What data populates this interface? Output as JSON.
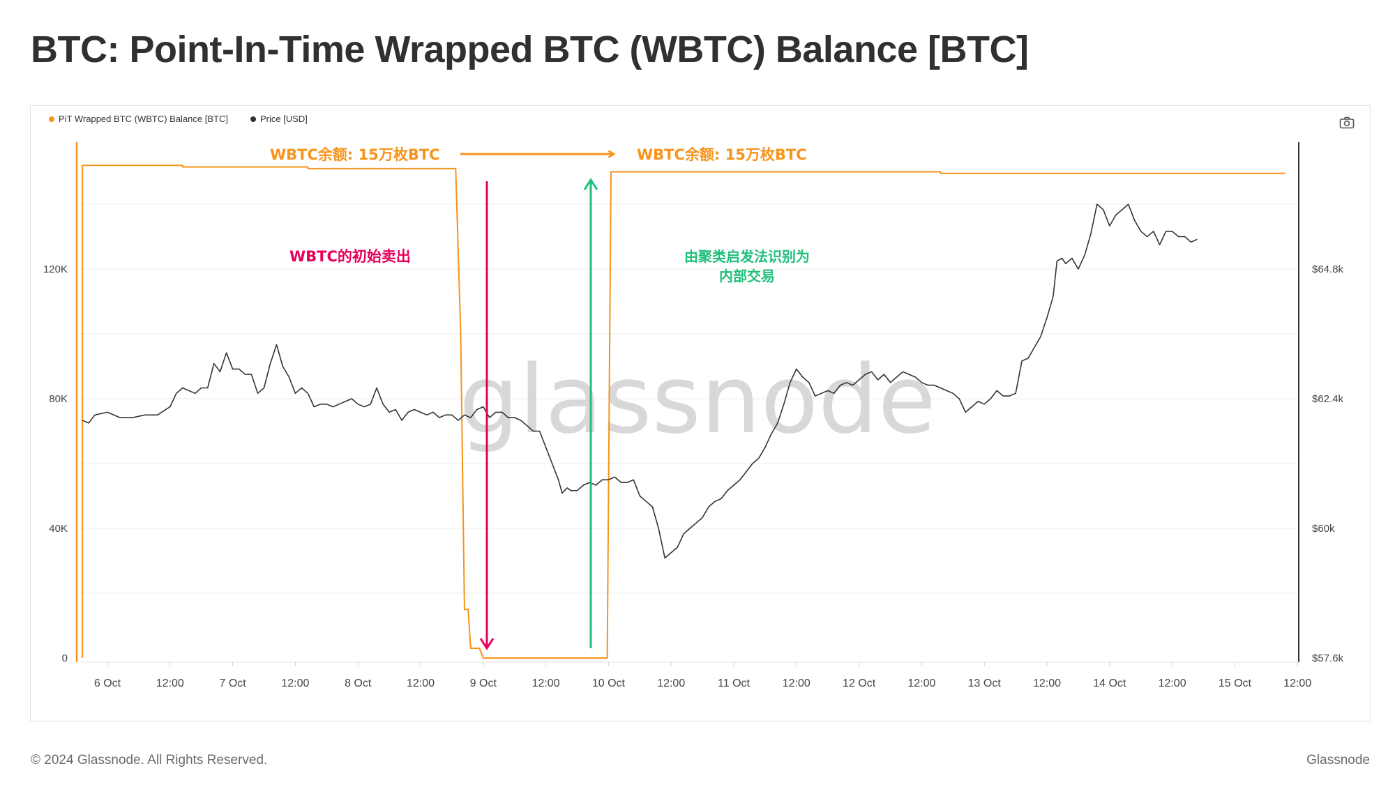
{
  "page": {
    "title": "BTC: Point-In-Time Wrapped BTC (WBTC) Balance [BTC]",
    "copyright": "© 2024 Glassnode. All Rights Reserved.",
    "brand": "Glassnode",
    "watermark": "glassnode"
  },
  "legend": [
    {
      "label": "PiT Wrapped BTC (WBTC) Balance [BTC]",
      "color": "#f7931a"
    },
    {
      "label": "Price [USD]",
      "color": "#333333"
    }
  ],
  "toolbar": {
    "camera_icon": "camera-icon"
  },
  "annotations": {
    "balance_before": "WBTC余额: 15万枚BTC",
    "balance_after": "WBTC余额: 15万枚BTC",
    "initial_sale": "WBTC的初始卖出",
    "internal_line1": "由聚类启发法识别为",
    "internal_line2": "内部交易",
    "colors": {
      "orange": "#f7931a",
      "magenta": "#e6005c",
      "green": "#1fbf7a"
    }
  },
  "chart_data": {
    "type": "line",
    "x_ticks": [
      "6 Oct",
      "12:00",
      "7 Oct",
      "12:00",
      "8 Oct",
      "12:00",
      "9 Oct",
      "12:00",
      "10 Oct",
      "12:00",
      "11 Oct",
      "12:00",
      "12 Oct",
      "12:00",
      "13 Oct",
      "12:00",
      "14 Oct",
      "12:00",
      "15 Oct",
      "12:00"
    ],
    "xlim_days": [
      5.8,
      15.5
    ],
    "y_left": {
      "ticks": [
        "0",
        "40K",
        "80K",
        "120K"
      ],
      "tick_values": [
        0,
        40000,
        80000,
        120000
      ],
      "lim": [
        0,
        160000
      ]
    },
    "y_right": {
      "ticks": [
        "$57.6k",
        "$60k",
        "$62.4k",
        "$64.8k"
      ],
      "tick_values": [
        57600,
        60000,
        62400,
        64800
      ],
      "lim": [
        57600,
        67200
      ]
    },
    "series": [
      {
        "name": "PiT Wrapped BTC (WBTC) Balance [BTC]",
        "axis": "left",
        "color": "#f7931a",
        "points": [
          [
            5.8,
            0
          ],
          [
            5.8,
            152000
          ],
          [
            6.6,
            152000
          ],
          [
            6.6,
            151500
          ],
          [
            7.6,
            151500
          ],
          [
            7.6,
            151000
          ],
          [
            8.78,
            151000
          ],
          [
            8.82,
            100000
          ],
          [
            8.85,
            15000
          ],
          [
            8.88,
            15000
          ],
          [
            8.9,
            3000
          ],
          [
            8.97,
            3000
          ],
          [
            9.0,
            0
          ],
          [
            9.99,
            0
          ],
          [
            10.02,
            150000
          ],
          [
            12.65,
            150000
          ],
          [
            12.65,
            149500
          ],
          [
            15.4,
            149500
          ]
        ]
      },
      {
        "name": "Price [USD]",
        "axis": "right",
        "color": "#333333",
        "points": [
          [
            5.8,
            62000
          ],
          [
            5.85,
            61950
          ],
          [
            5.9,
            62100
          ],
          [
            6.0,
            62150
          ],
          [
            6.1,
            62050
          ],
          [
            6.2,
            62050
          ],
          [
            6.3,
            62100
          ],
          [
            6.4,
            62100
          ],
          [
            6.5,
            62250
          ],
          [
            6.55,
            62500
          ],
          [
            6.6,
            62600
          ],
          [
            6.7,
            62500
          ],
          [
            6.75,
            62600
          ],
          [
            6.8,
            62600
          ],
          [
            6.85,
            63050
          ],
          [
            6.9,
            62900
          ],
          [
            6.95,
            63250
          ],
          [
            7.0,
            62950
          ],
          [
            7.05,
            62950
          ],
          [
            7.1,
            62850
          ],
          [
            7.15,
            62850
          ],
          [
            7.2,
            62500
          ],
          [
            7.25,
            62600
          ],
          [
            7.3,
            63050
          ],
          [
            7.35,
            63400
          ],
          [
            7.4,
            63000
          ],
          [
            7.45,
            62800
          ],
          [
            7.5,
            62500
          ],
          [
            7.55,
            62600
          ],
          [
            7.6,
            62500
          ],
          [
            7.65,
            62250
          ],
          [
            7.7,
            62300
          ],
          [
            7.75,
            62300
          ],
          [
            7.8,
            62250
          ],
          [
            7.85,
            62300
          ],
          [
            7.9,
            62350
          ],
          [
            7.95,
            62400
          ],
          [
            8.0,
            62300
          ],
          [
            8.05,
            62250
          ],
          [
            8.1,
            62300
          ],
          [
            8.15,
            62600
          ],
          [
            8.2,
            62300
          ],
          [
            8.25,
            62150
          ],
          [
            8.3,
            62200
          ],
          [
            8.35,
            62000
          ],
          [
            8.4,
            62150
          ],
          [
            8.45,
            62200
          ],
          [
            8.5,
            62150
          ],
          [
            8.55,
            62100
          ],
          [
            8.6,
            62150
          ],
          [
            8.65,
            62050
          ],
          [
            8.7,
            62100
          ],
          [
            8.75,
            62100
          ],
          [
            8.8,
            62000
          ],
          [
            8.85,
            62100
          ],
          [
            8.9,
            62050
          ],
          [
            8.95,
            62200
          ],
          [
            9.0,
            62250
          ],
          [
            9.05,
            62050
          ],
          [
            9.1,
            62150
          ],
          [
            9.15,
            62150
          ],
          [
            9.2,
            62050
          ],
          [
            9.25,
            62050
          ],
          [
            9.3,
            62000
          ],
          [
            9.35,
            61900
          ],
          [
            9.4,
            61800
          ],
          [
            9.45,
            61800
          ],
          [
            9.5,
            61500
          ],
          [
            9.55,
            61200
          ],
          [
            9.6,
            60900
          ],
          [
            9.63,
            60650
          ],
          [
            9.67,
            60750
          ],
          [
            9.7,
            60700
          ],
          [
            9.75,
            60700
          ],
          [
            9.8,
            60800
          ],
          [
            9.85,
            60850
          ],
          [
            9.9,
            60800
          ],
          [
            9.95,
            60900
          ],
          [
            10.0,
            60900
          ],
          [
            10.05,
            60950
          ],
          [
            10.1,
            60850
          ],
          [
            10.15,
            60850
          ],
          [
            10.2,
            60900
          ],
          [
            10.25,
            60600
          ],
          [
            10.3,
            60500
          ],
          [
            10.35,
            60400
          ],
          [
            10.4,
            60000
          ],
          [
            10.45,
            59450
          ],
          [
            10.5,
            59550
          ],
          [
            10.55,
            59650
          ],
          [
            10.6,
            59900
          ],
          [
            10.65,
            60000
          ],
          [
            10.7,
            60100
          ],
          [
            10.75,
            60200
          ],
          [
            10.8,
            60400
          ],
          [
            10.85,
            60500
          ],
          [
            10.9,
            60550
          ],
          [
            10.95,
            60700
          ],
          [
            11.0,
            60800
          ],
          [
            11.05,
            60900
          ],
          [
            11.1,
            61050
          ],
          [
            11.15,
            61200
          ],
          [
            11.2,
            61300
          ],
          [
            11.25,
            61500
          ],
          [
            11.3,
            61750
          ],
          [
            11.35,
            61950
          ],
          [
            11.4,
            62300
          ],
          [
            11.45,
            62700
          ],
          [
            11.5,
            62950
          ],
          [
            11.55,
            62800
          ],
          [
            11.6,
            62700
          ],
          [
            11.65,
            62450
          ],
          [
            11.7,
            62500
          ],
          [
            11.75,
            62550
          ],
          [
            11.8,
            62500
          ],
          [
            11.85,
            62650
          ],
          [
            11.9,
            62700
          ],
          [
            11.95,
            62650
          ],
          [
            12.0,
            62750
          ],
          [
            12.05,
            62850
          ],
          [
            12.1,
            62900
          ],
          [
            12.15,
            62750
          ],
          [
            12.2,
            62850
          ],
          [
            12.25,
            62700
          ],
          [
            12.3,
            62800
          ],
          [
            12.35,
            62900
          ],
          [
            12.4,
            62850
          ],
          [
            12.45,
            62800
          ],
          [
            12.5,
            62700
          ],
          [
            12.55,
            62650
          ],
          [
            12.6,
            62650
          ],
          [
            12.65,
            62600
          ],
          [
            12.7,
            62550
          ],
          [
            12.75,
            62500
          ],
          [
            12.8,
            62400
          ],
          [
            12.85,
            62150
          ],
          [
            12.9,
            62250
          ],
          [
            12.95,
            62350
          ],
          [
            13.0,
            62300
          ],
          [
            13.05,
            62400
          ],
          [
            13.1,
            62550
          ],
          [
            13.15,
            62450
          ],
          [
            13.2,
            62450
          ],
          [
            13.25,
            62500
          ],
          [
            13.3,
            63100
          ],
          [
            13.35,
            63150
          ],
          [
            13.4,
            63350
          ],
          [
            13.45,
            63550
          ],
          [
            13.5,
            63900
          ],
          [
            13.55,
            64300
          ],
          [
            13.58,
            64950
          ],
          [
            13.62,
            65000
          ],
          [
            13.65,
            64900
          ],
          [
            13.7,
            65000
          ],
          [
            13.75,
            64800
          ],
          [
            13.8,
            65050
          ],
          [
            13.85,
            65450
          ],
          [
            13.9,
            66000
          ],
          [
            13.95,
            65900
          ],
          [
            14.0,
            65600
          ],
          [
            14.05,
            65800
          ],
          [
            14.1,
            65900
          ],
          [
            14.15,
            66000
          ],
          [
            14.2,
            65700
          ],
          [
            14.25,
            65500
          ],
          [
            14.3,
            65400
          ],
          [
            14.35,
            65500
          ],
          [
            14.4,
            65250
          ],
          [
            14.45,
            65500
          ],
          [
            14.5,
            65500
          ],
          [
            14.55,
            65400
          ],
          [
            14.6,
            65400
          ],
          [
            14.65,
            65300
          ],
          [
            14.7,
            65350
          ]
        ]
      }
    ]
  }
}
